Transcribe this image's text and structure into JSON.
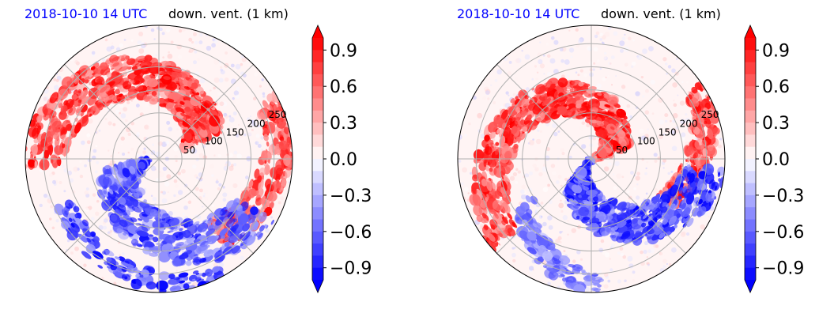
{
  "panels": [
    {
      "title_left": "2018-10-10 14 UTC",
      "title_right": "down. vent. (1 km)",
      "title_left_color": "#0000ff",
      "radial_labels": [
        "50",
        "100",
        "150",
        "200",
        "250"
      ]
    },
    {
      "title_left": "2018-10-10 14 UTC",
      "title_right": "down. vent. (1 km)",
      "title_left_color": "#0000ff",
      "radial_labels": [
        "50",
        "100",
        "150",
        "200",
        "250"
      ]
    }
  ],
  "chart_data": [
    {
      "type": "heatmap",
      "projection": "polar",
      "title_left": "2018-10-10 14 UTC",
      "title_right": "down. vent. (1 km)",
      "radial_ticks": [
        50,
        100,
        150,
        200,
        250
      ],
      "grid": true,
      "colorbar": {
        "cmap": "bwr",
        "vmin": -1.0,
        "vmax": 1.0,
        "extend": "both",
        "ticks": [
          -0.9,
          -0.6,
          -0.3,
          0.0,
          0.3,
          0.6,
          0.9
        ],
        "tick_labels": [
          "−0.9",
          "−0.6",
          "−0.3",
          "0.0",
          "0.3",
          "0.6",
          "0.9"
        ]
      }
    },
    {
      "type": "heatmap",
      "projection": "polar",
      "title_left": "2018-10-10 14 UTC",
      "title_right": "down. vent. (1 km)",
      "radial_ticks": [
        50,
        100,
        150,
        200,
        250
      ],
      "grid": true,
      "colorbar": {
        "cmap": "bwr",
        "vmin": -1.0,
        "vmax": 1.0,
        "extend": "both",
        "ticks": [
          -0.9,
          -0.6,
          -0.3,
          0.0,
          0.3,
          0.6,
          0.9
        ],
        "tick_labels": [
          "−0.9",
          "−0.6",
          "−0.3",
          "0.0",
          "0.3",
          "0.6",
          "0.9"
        ]
      }
    }
  ]
}
